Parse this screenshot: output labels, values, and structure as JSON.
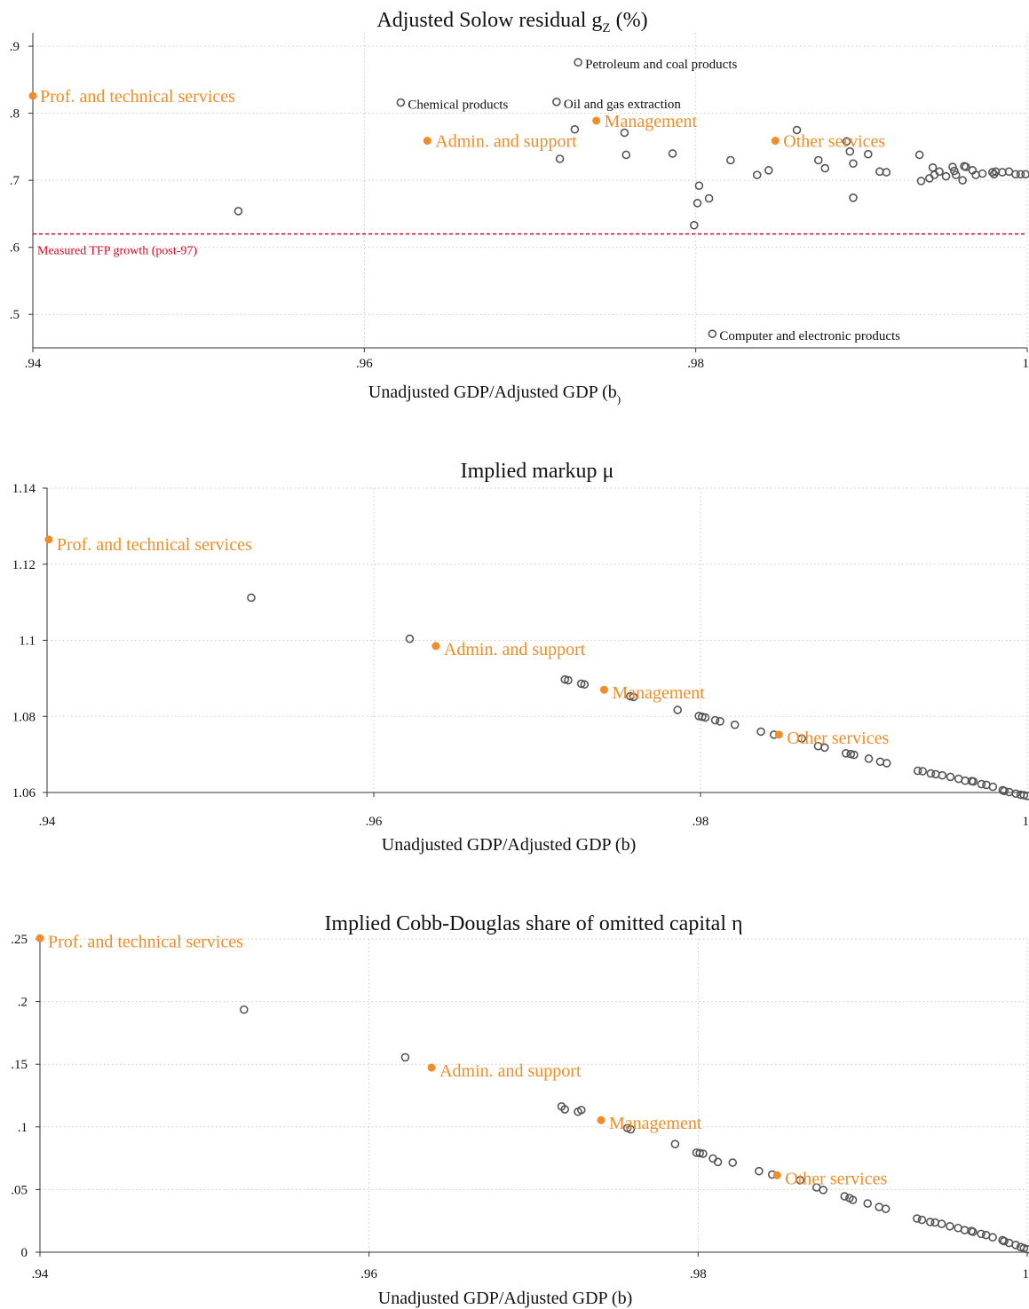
{
  "chart_data": [
    {
      "type": "scatter",
      "title": "Adjusted Solow residual g",
      "title_subscript": "Z",
      "title_suffix": " (%)",
      "xlabel": "Unadjusted GDP/Adjusted GDP (b",
      "xlabel_close": ")",
      "ylabel": "",
      "xlim": [
        0.94,
        1.0
      ],
      "ylim": [
        0.45,
        0.92
      ],
      "xticks": [
        {
          "v": 0.94,
          "label": ".94"
        },
        {
          "v": 0.96,
          "label": ".96"
        },
        {
          "v": 0.98,
          "label": ".98"
        },
        {
          "v": 1.0,
          "label": "1"
        }
      ],
      "yticks": [
        {
          "v": 0.5,
          "label": ".5"
        },
        {
          "v": 0.6,
          "label": ".6"
        },
        {
          "v": 0.7,
          "label": ".7"
        },
        {
          "v": 0.8,
          "label": ".8"
        },
        {
          "v": 0.9,
          "label": ".9"
        }
      ],
      "grid": true,
      "reference_line": {
        "y": 0.62,
        "label": "Measured TFP growth (post-97)",
        "color": "#e8001c"
      },
      "highlight_color": "#f28c28",
      "marker_color": "#555555",
      "highlighted": [
        {
          "x": 0.94,
          "y": 0.826,
          "label": "Prof. and technical services"
        },
        {
          "x": 0.9638,
          "y": 0.759,
          "label": "Admin. and support"
        },
        {
          "x": 0.974,
          "y": 0.789,
          "label": "Management"
        },
        {
          "x": 0.9848,
          "y": 0.759,
          "label": "Other services"
        }
      ],
      "labeled_points": [
        {
          "x": 0.9729,
          "y": 0.876,
          "label": "Petroleum and coal products"
        },
        {
          "x": 0.9622,
          "y": 0.816,
          "label": "Chemical products"
        },
        {
          "x": 0.9716,
          "y": 0.817,
          "label": "Oil and gas extraction"
        },
        {
          "x": 0.981,
          "y": 0.471,
          "label": "Computer and electronic products"
        }
      ],
      "points": [
        {
          "x": 0.9524,
          "y": 0.654
        },
        {
          "x": 0.9718,
          "y": 0.732
        },
        {
          "x": 0.9727,
          "y": 0.776
        },
        {
          "x": 0.9757,
          "y": 0.771
        },
        {
          "x": 0.9758,
          "y": 0.738
        },
        {
          "x": 0.9786,
          "y": 0.74
        },
        {
          "x": 0.9799,
          "y": 0.633
        },
        {
          "x": 0.9801,
          "y": 0.666
        },
        {
          "x": 0.9802,
          "y": 0.692
        },
        {
          "x": 0.9808,
          "y": 0.673
        },
        {
          "x": 0.9821,
          "y": 0.73
        },
        {
          "x": 0.9837,
          "y": 0.708
        },
        {
          "x": 0.9844,
          "y": 0.715
        },
        {
          "x": 0.9861,
          "y": 0.775
        },
        {
          "x": 0.9874,
          "y": 0.73
        },
        {
          "x": 0.9878,
          "y": 0.718
        },
        {
          "x": 0.9891,
          "y": 0.758
        },
        {
          "x": 0.9893,
          "y": 0.743
        },
        {
          "x": 0.9895,
          "y": 0.725
        },
        {
          "x": 0.9895,
          "y": 0.674
        },
        {
          "x": 0.9904,
          "y": 0.739
        },
        {
          "x": 0.9911,
          "y": 0.713
        },
        {
          "x": 0.9915,
          "y": 0.712
        },
        {
          "x": 0.9935,
          "y": 0.738
        },
        {
          "x": 0.9936,
          "y": 0.699
        },
        {
          "x": 0.9941,
          "y": 0.703
        },
        {
          "x": 0.9943,
          "y": 0.719
        },
        {
          "x": 0.9944,
          "y": 0.708
        },
        {
          "x": 0.9947,
          "y": 0.713
        },
        {
          "x": 0.9951,
          "y": 0.706
        },
        {
          "x": 0.9955,
          "y": 0.72
        },
        {
          "x": 0.9956,
          "y": 0.714
        },
        {
          "x": 0.9957,
          "y": 0.708
        },
        {
          "x": 0.9961,
          "y": 0.7
        },
        {
          "x": 0.9962,
          "y": 0.721
        },
        {
          "x": 0.9963,
          "y": 0.72
        },
        {
          "x": 0.9967,
          "y": 0.715
        },
        {
          "x": 0.9969,
          "y": 0.708
        },
        {
          "x": 0.9973,
          "y": 0.71
        },
        {
          "x": 0.9979,
          "y": 0.712
        },
        {
          "x": 0.998,
          "y": 0.709
        },
        {
          "x": 0.9981,
          "y": 0.713
        },
        {
          "x": 0.9985,
          "y": 0.712
        },
        {
          "x": 0.9989,
          "y": 0.713
        },
        {
          "x": 0.9993,
          "y": 0.709
        },
        {
          "x": 0.9996,
          "y": 0.709
        },
        {
          "x": 0.9999,
          "y": 0.709
        }
      ]
    },
    {
      "type": "scatter",
      "title": "Implied markup μ",
      "xlabel": "Unadjusted GDP/Adjusted GDP (b)",
      "ylabel": "",
      "xlim": [
        0.94,
        1.0
      ],
      "ylim": [
        1.06,
        1.14
      ],
      "xticks": [
        {
          "v": 0.94,
          "label": ".94"
        },
        {
          "v": 0.96,
          "label": ".96"
        },
        {
          "v": 0.98,
          "label": ".98"
        },
        {
          "v": 1.0,
          "label": "1"
        }
      ],
      "yticks": [
        {
          "v": 1.06,
          "label": "1.06"
        },
        {
          "v": 1.08,
          "label": "1.08"
        },
        {
          "v": 1.1,
          "label": "1.1"
        },
        {
          "v": 1.12,
          "label": "1.12"
        },
        {
          "v": 1.14,
          "label": "1.14"
        }
      ],
      "grid": true,
      "highlight_color": "#f28c28",
      "marker_color": "#555555",
      "highlighted": [
        {
          "x": 0.9401,
          "y": 1.1265,
          "label": "Prof. and technical services"
        },
        {
          "x": 0.9638,
          "y": 1.0985,
          "label": "Admin. and support"
        },
        {
          "x": 0.9741,
          "y": 1.087,
          "label": "Management"
        },
        {
          "x": 0.9848,
          "y": 1.0752,
          "label": "Other services"
        }
      ],
      "points": [
        {
          "x": 0.9525,
          "y": 1.1112
        },
        {
          "x": 0.9622,
          "y": 1.1004
        },
        {
          "x": 0.9717,
          "y": 1.0897
        },
        {
          "x": 0.9719,
          "y": 1.0895
        },
        {
          "x": 0.9727,
          "y": 1.0886
        },
        {
          "x": 0.9729,
          "y": 1.0884
        },
        {
          "x": 0.9757,
          "y": 1.0853
        },
        {
          "x": 0.9759,
          "y": 1.0851
        },
        {
          "x": 0.9786,
          "y": 1.0817
        },
        {
          "x": 0.9799,
          "y": 1.0801
        },
        {
          "x": 0.9801,
          "y": 1.0799
        },
        {
          "x": 0.9803,
          "y": 1.0797
        },
        {
          "x": 0.9809,
          "y": 1.079
        },
        {
          "x": 0.9812,
          "y": 1.0787
        },
        {
          "x": 0.9821,
          "y": 1.0778
        },
        {
          "x": 0.9837,
          "y": 1.076
        },
        {
          "x": 0.9845,
          "y": 1.0752
        },
        {
          "x": 0.9862,
          "y": 1.0742
        },
        {
          "x": 0.9872,
          "y": 1.0722
        },
        {
          "x": 0.9876,
          "y": 1.0718
        },
        {
          "x": 0.9889,
          "y": 1.0703
        },
        {
          "x": 0.9892,
          "y": 1.0701
        },
        {
          "x": 0.9894,
          "y": 1.0699
        },
        {
          "x": 0.9903,
          "y": 1.0689
        },
        {
          "x": 0.991,
          "y": 1.0681
        },
        {
          "x": 0.9914,
          "y": 1.0677
        },
        {
          "x": 0.9933,
          "y": 1.0657
        },
        {
          "x": 0.9936,
          "y": 1.0656
        },
        {
          "x": 0.9941,
          "y": 1.065
        },
        {
          "x": 0.9944,
          "y": 1.0648
        },
        {
          "x": 0.9948,
          "y": 1.0645
        },
        {
          "x": 0.9953,
          "y": 1.0641
        },
        {
          "x": 0.9958,
          "y": 1.0636
        },
        {
          "x": 0.9962,
          "y": 1.0631
        },
        {
          "x": 0.9966,
          "y": 1.063
        },
        {
          "x": 0.9967,
          "y": 1.0629
        },
        {
          "x": 0.9972,
          "y": 1.0622
        },
        {
          "x": 0.9975,
          "y": 1.062
        },
        {
          "x": 0.9979,
          "y": 1.0615
        },
        {
          "x": 0.9985,
          "y": 1.0606
        },
        {
          "x": 0.9986,
          "y": 1.0604
        },
        {
          "x": 0.9989,
          "y": 1.0601
        },
        {
          "x": 0.9993,
          "y": 1.0597
        },
        {
          "x": 0.9996,
          "y": 1.0594
        },
        {
          "x": 0.9998,
          "y": 1.0593
        },
        {
          "x": 1.0,
          "y": 1.0591
        }
      ]
    },
    {
      "type": "scatter",
      "title": "Implied Cobb-Douglas share of omitted capital η",
      "xlabel": "Unadjusted GDP/Adjusted GDP (b)",
      "ylabel": "",
      "xlim": [
        0.94,
        1.0
      ],
      "ylim": [
        0,
        0.25
      ],
      "xticks": [
        {
          "v": 0.94,
          "label": ".94"
        },
        {
          "v": 0.96,
          "label": ".96"
        },
        {
          "v": 0.98,
          "label": ".98"
        },
        {
          "v": 1.0,
          "label": "1"
        }
      ],
      "yticks": [
        {
          "v": 0,
          "label": "0"
        },
        {
          "v": 0.05,
          "label": ".05"
        },
        {
          "v": 0.1,
          "label": ".1"
        },
        {
          "v": 0.15,
          "label": ".15"
        },
        {
          "v": 0.2,
          "label": ".2"
        },
        {
          "v": 0.25,
          "label": ".25"
        }
      ],
      "grid": true,
      "highlight_color": "#f28c28",
      "marker_color": "#555555",
      "highlighted": [
        {
          "x": 0.94,
          "y": 0.2505,
          "label": "Prof. and technical services"
        },
        {
          "x": 0.9638,
          "y": 0.1473,
          "label": "Admin. and support"
        },
        {
          "x": 0.9741,
          "y": 0.1054,
          "label": "Management"
        },
        {
          "x": 0.9848,
          "y": 0.0614,
          "label": "Other services"
        }
      ],
      "points": [
        {
          "x": 0.9524,
          "y": 0.1936
        },
        {
          "x": 0.9622,
          "y": 0.1555
        },
        {
          "x": 0.9717,
          "y": 0.1163
        },
        {
          "x": 0.9719,
          "y": 0.114
        },
        {
          "x": 0.9727,
          "y": 0.1121
        },
        {
          "x": 0.9729,
          "y": 0.1135
        },
        {
          "x": 0.9757,
          "y": 0.0991
        },
        {
          "x": 0.9759,
          "y": 0.098
        },
        {
          "x": 0.9786,
          "y": 0.0863
        },
        {
          "x": 0.9799,
          "y": 0.0794
        },
        {
          "x": 0.9801,
          "y": 0.0791
        },
        {
          "x": 0.9803,
          "y": 0.0786
        },
        {
          "x": 0.9809,
          "y": 0.0748
        },
        {
          "x": 0.9812,
          "y": 0.072
        },
        {
          "x": 0.9821,
          "y": 0.0715
        },
        {
          "x": 0.9837,
          "y": 0.0647
        },
        {
          "x": 0.9845,
          "y": 0.062
        },
        {
          "x": 0.9862,
          "y": 0.0575
        },
        {
          "x": 0.9872,
          "y": 0.0517
        },
        {
          "x": 0.9876,
          "y": 0.0497
        },
        {
          "x": 0.9889,
          "y": 0.0446
        },
        {
          "x": 0.9892,
          "y": 0.0432
        },
        {
          "x": 0.9894,
          "y": 0.0417
        },
        {
          "x": 0.9903,
          "y": 0.0389
        },
        {
          "x": 0.991,
          "y": 0.0361
        },
        {
          "x": 0.9914,
          "y": 0.0346
        },
        {
          "x": 0.9933,
          "y": 0.0269
        },
        {
          "x": 0.9936,
          "y": 0.0258
        },
        {
          "x": 0.9941,
          "y": 0.0241
        },
        {
          "x": 0.9944,
          "y": 0.0237
        },
        {
          "x": 0.9948,
          "y": 0.0226
        },
        {
          "x": 0.9953,
          "y": 0.0207
        },
        {
          "x": 0.9958,
          "y": 0.0193
        },
        {
          "x": 0.9962,
          "y": 0.0176
        },
        {
          "x": 0.9966,
          "y": 0.0169
        },
        {
          "x": 0.9967,
          "y": 0.0163
        },
        {
          "x": 0.9972,
          "y": 0.0146
        },
        {
          "x": 0.9975,
          "y": 0.0137
        },
        {
          "x": 0.9979,
          "y": 0.0119
        },
        {
          "x": 0.9985,
          "y": 0.0096
        },
        {
          "x": 0.9986,
          "y": 0.0088
        },
        {
          "x": 0.9989,
          "y": 0.0074
        },
        {
          "x": 0.9993,
          "y": 0.0058
        },
        {
          "x": 0.9996,
          "y": 0.0041
        },
        {
          "x": 0.9998,
          "y": 0.0032
        },
        {
          "x": 1.0,
          "y": 0.0023
        }
      ]
    }
  ]
}
